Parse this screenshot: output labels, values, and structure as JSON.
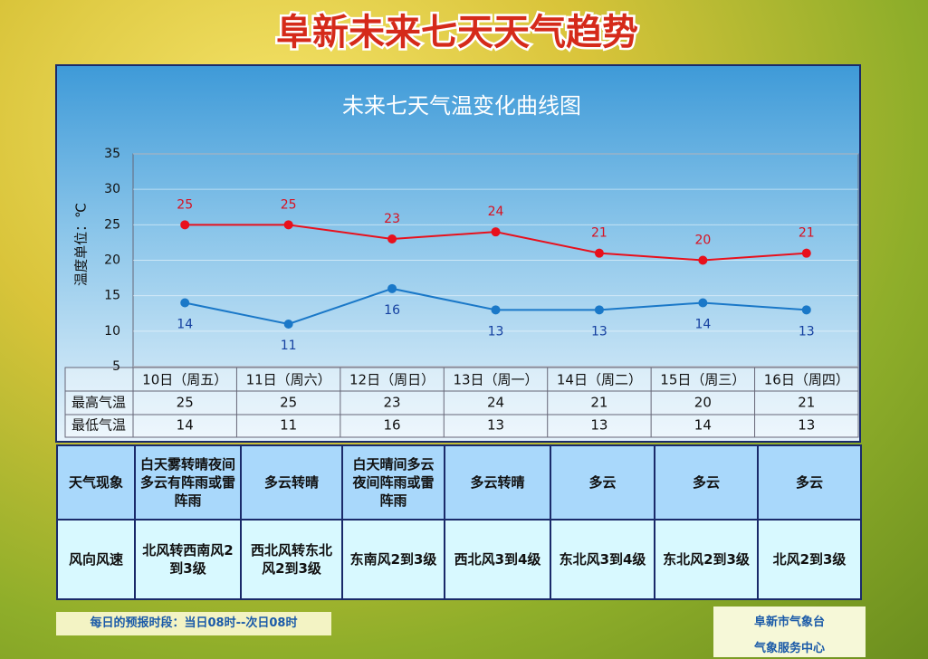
{
  "header": {
    "title": "阜新未来七天天气趋势"
  },
  "chart_data": {
    "type": "line",
    "title": "未来七天气温变化曲线图",
    "y_label": "温度单位：℃",
    "categories": [
      "10日（周五）",
      "11日（周六）",
      "12日（周日）",
      "13日（周一）",
      "14日（周二）",
      "15日（周三）",
      "16日（周四）"
    ],
    "series": [
      {
        "name": "最高气温",
        "color": "#e8101c",
        "values": [
          25,
          25,
          23,
          24,
          21,
          20,
          21
        ]
      },
      {
        "name": "最低气温",
        "color": "#1a78c8",
        "values": [
          14,
          11,
          16,
          13,
          13,
          14,
          13
        ]
      }
    ],
    "ylim": [
      5,
      35
    ],
    "yticks": [
      5,
      10,
      15,
      20,
      25,
      30,
      35
    ],
    "grid": true
  },
  "table": {
    "rows": [
      {
        "label": "天气现象",
        "cells": [
          "白天雾转晴夜间多云有阵雨或雷阵雨",
          "多云转晴",
          "白天晴间多云夜间阵雨或雷阵雨",
          "多云转晴",
          "多云",
          "多云",
          "多云"
        ]
      },
      {
        "label": "风向风速",
        "cells": [
          "北风转西南风2到3级",
          "西北风转东北风2到3级",
          "东南风2到3级",
          "西北风3到4级",
          "东北风3到4级",
          "东北风2到3级",
          "北风2到3级"
        ]
      }
    ]
  },
  "footer": {
    "period": "每日的预报时段：当日08时--次日08时",
    "org1": "阜新市气象台",
    "org2": "气象服务中心"
  }
}
